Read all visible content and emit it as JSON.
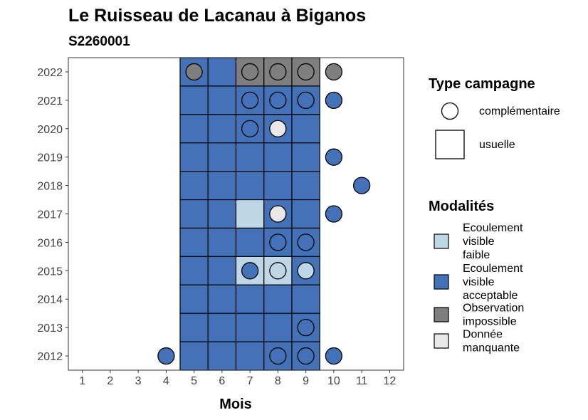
{
  "chart_data": {
    "type": "heatmap",
    "title": "Le Ruisseau de Lacanau à Biganos",
    "subtitle": "S2260001",
    "xlabel": "Mois",
    "ylabel": "",
    "x_ticks": [
      1,
      2,
      3,
      4,
      5,
      6,
      7,
      8,
      9,
      10,
      11,
      12
    ],
    "y_ticks": [
      2012,
      2013,
      2014,
      2015,
      2016,
      2017,
      2018,
      2019,
      2020,
      2021,
      2022
    ],
    "xlim": [
      0.5,
      12.5
    ],
    "ylim": [
      2011.5,
      2022.5
    ],
    "grid": false,
    "legend_position": "right",
    "colors": {
      "faible": "#BDD7E7",
      "acceptable": "#4372B8",
      "impossible": "#7F7F7F",
      "manquante": "#E8E8E8"
    },
    "legend_type": {
      "title": "Type campagne",
      "items": [
        {
          "key": "complementaire",
          "label": "complémentaire",
          "shape": "circle"
        },
        {
          "key": "usuelle",
          "label": "usuelle",
          "shape": "square"
        }
      ]
    },
    "legend_modalites": {
      "title": "Modalités",
      "items": [
        {
          "key": "faible",
          "lines": [
            "Ecoulement",
            "visible",
            "faible"
          ]
        },
        {
          "key": "acceptable",
          "lines": [
            "Ecoulement",
            "visible",
            "acceptable"
          ]
        },
        {
          "key": "impossible",
          "lines": [
            "Observation",
            "impossible"
          ]
        },
        {
          "key": "manquante",
          "lines": [
            "Donnée",
            "manquante"
          ]
        }
      ]
    },
    "usuelle": [
      {
        "year": 2022,
        "month": 5,
        "modalite": "acceptable"
      },
      {
        "year": 2022,
        "month": 6,
        "modalite": "acceptable"
      },
      {
        "year": 2022,
        "month": 7,
        "modalite": "impossible"
      },
      {
        "year": 2022,
        "month": 8,
        "modalite": "impossible"
      },
      {
        "year": 2022,
        "month": 9,
        "modalite": "impossible"
      },
      {
        "year": 2021,
        "month": 5,
        "modalite": "acceptable"
      },
      {
        "year": 2021,
        "month": 6,
        "modalite": "acceptable"
      },
      {
        "year": 2021,
        "month": 7,
        "modalite": "acceptable"
      },
      {
        "year": 2021,
        "month": 8,
        "modalite": "acceptable"
      },
      {
        "year": 2021,
        "month": 9,
        "modalite": "acceptable"
      },
      {
        "year": 2020,
        "month": 5,
        "modalite": "acceptable"
      },
      {
        "year": 2020,
        "month": 6,
        "modalite": "acceptable"
      },
      {
        "year": 2020,
        "month": 7,
        "modalite": "acceptable"
      },
      {
        "year": 2020,
        "month": 8,
        "modalite": "acceptable"
      },
      {
        "year": 2020,
        "month": 9,
        "modalite": "acceptable"
      },
      {
        "year": 2019,
        "month": 5,
        "modalite": "acceptable"
      },
      {
        "year": 2019,
        "month": 6,
        "modalite": "acceptable"
      },
      {
        "year": 2019,
        "month": 7,
        "modalite": "acceptable"
      },
      {
        "year": 2019,
        "month": 8,
        "modalite": "acceptable"
      },
      {
        "year": 2019,
        "month": 9,
        "modalite": "acceptable"
      },
      {
        "year": 2018,
        "month": 5,
        "modalite": "acceptable"
      },
      {
        "year": 2018,
        "month": 6,
        "modalite": "acceptable"
      },
      {
        "year": 2018,
        "month": 7,
        "modalite": "acceptable"
      },
      {
        "year": 2018,
        "month": 8,
        "modalite": "acceptable"
      },
      {
        "year": 2018,
        "month": 9,
        "modalite": "acceptable"
      },
      {
        "year": 2017,
        "month": 5,
        "modalite": "acceptable"
      },
      {
        "year": 2017,
        "month": 6,
        "modalite": "acceptable"
      },
      {
        "year": 2017,
        "month": 7,
        "modalite": "faible"
      },
      {
        "year": 2017,
        "month": 8,
        "modalite": "acceptable"
      },
      {
        "year": 2017,
        "month": 9,
        "modalite": "acceptable"
      },
      {
        "year": 2016,
        "month": 5,
        "modalite": "acceptable"
      },
      {
        "year": 2016,
        "month": 6,
        "modalite": "acceptable"
      },
      {
        "year": 2016,
        "month": 7,
        "modalite": "acceptable"
      },
      {
        "year": 2016,
        "month": 8,
        "modalite": "acceptable"
      },
      {
        "year": 2016,
        "month": 9,
        "modalite": "acceptable"
      },
      {
        "year": 2015,
        "month": 5,
        "modalite": "acceptable"
      },
      {
        "year": 2015,
        "month": 6,
        "modalite": "acceptable"
      },
      {
        "year": 2015,
        "month": 7,
        "modalite": "faible"
      },
      {
        "year": 2015,
        "month": 8,
        "modalite": "faible"
      },
      {
        "year": 2015,
        "month": 9,
        "modalite": "acceptable"
      },
      {
        "year": 2014,
        "month": 5,
        "modalite": "acceptable"
      },
      {
        "year": 2014,
        "month": 6,
        "modalite": "acceptable"
      },
      {
        "year": 2014,
        "month": 7,
        "modalite": "acceptable"
      },
      {
        "year": 2014,
        "month": 8,
        "modalite": "acceptable"
      },
      {
        "year": 2014,
        "month": 9,
        "modalite": "acceptable"
      },
      {
        "year": 2013,
        "month": 5,
        "modalite": "acceptable"
      },
      {
        "year": 2013,
        "month": 6,
        "modalite": "acceptable"
      },
      {
        "year": 2013,
        "month": 7,
        "modalite": "acceptable"
      },
      {
        "year": 2013,
        "month": 8,
        "modalite": "acceptable"
      },
      {
        "year": 2013,
        "month": 9,
        "modalite": "acceptable"
      },
      {
        "year": 2012,
        "month": 5,
        "modalite": "acceptable"
      },
      {
        "year": 2012,
        "month": 6,
        "modalite": "acceptable"
      },
      {
        "year": 2012,
        "month": 7,
        "modalite": "acceptable"
      },
      {
        "year": 2012,
        "month": 8,
        "modalite": "acceptable"
      },
      {
        "year": 2012,
        "month": 9,
        "modalite": "acceptable"
      }
    ],
    "complementaire": [
      {
        "year": 2022,
        "month": 5,
        "modalite": "impossible"
      },
      {
        "year": 2022,
        "month": 7,
        "modalite": "impossible"
      },
      {
        "year": 2022,
        "month": 8,
        "modalite": "impossible"
      },
      {
        "year": 2022,
        "month": 9,
        "modalite": "impossible"
      },
      {
        "year": 2022,
        "month": 10,
        "modalite": "impossible"
      },
      {
        "year": 2021,
        "month": 7,
        "modalite": "acceptable"
      },
      {
        "year": 2021,
        "month": 8,
        "modalite": "acceptable"
      },
      {
        "year": 2021,
        "month": 9,
        "modalite": "acceptable"
      },
      {
        "year": 2021,
        "month": 10,
        "modalite": "acceptable"
      },
      {
        "year": 2020,
        "month": 7,
        "modalite": "acceptable"
      },
      {
        "year": 2020,
        "month": 8,
        "modalite": "manquante"
      },
      {
        "year": 2019,
        "month": 10,
        "modalite": "acceptable"
      },
      {
        "year": 2018,
        "month": 11,
        "modalite": "acceptable"
      },
      {
        "year": 2017,
        "month": 8,
        "modalite": "manquante"
      },
      {
        "year": 2017,
        "month": 10,
        "modalite": "acceptable"
      },
      {
        "year": 2016,
        "month": 8,
        "modalite": "acceptable"
      },
      {
        "year": 2016,
        "month": 9,
        "modalite": "acceptable"
      },
      {
        "year": 2015,
        "month": 7,
        "modalite": "acceptable"
      },
      {
        "year": 2015,
        "month": 8,
        "modalite": "faible"
      },
      {
        "year": 2015,
        "month": 9,
        "modalite": "faible"
      },
      {
        "year": 2013,
        "month": 9,
        "modalite": "acceptable"
      },
      {
        "year": 2012,
        "month": 4,
        "modalite": "acceptable"
      },
      {
        "year": 2012,
        "month": 8,
        "modalite": "acceptable"
      },
      {
        "year": 2012,
        "month": 9,
        "modalite": "acceptable"
      },
      {
        "year": 2012,
        "month": 10,
        "modalite": "acceptable"
      }
    ]
  }
}
